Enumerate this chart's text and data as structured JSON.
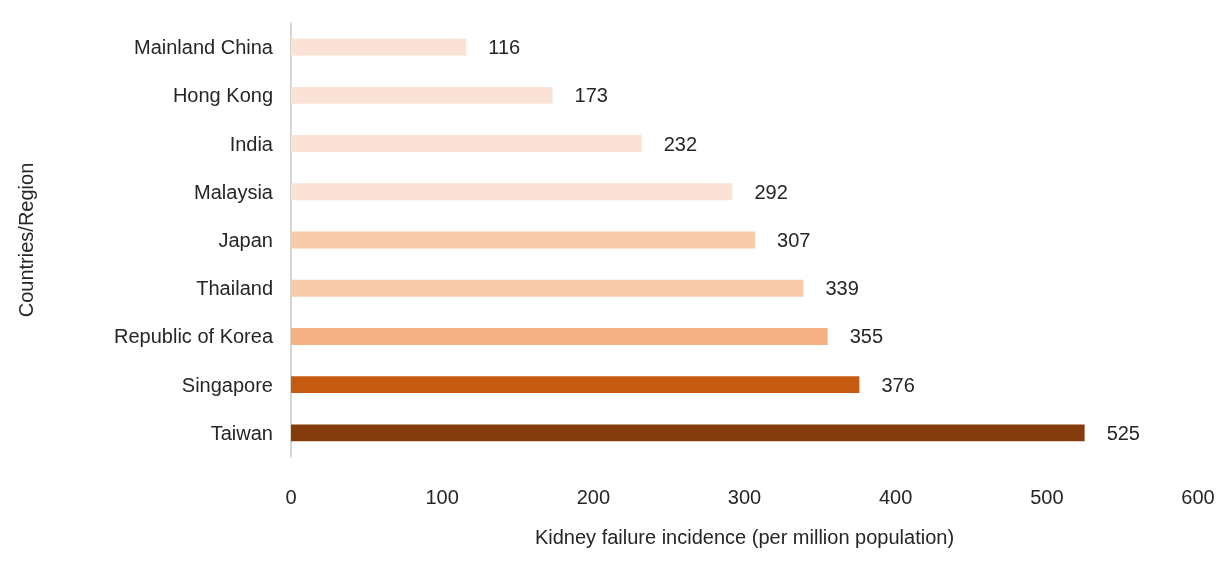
{
  "chart_data": {
    "type": "bar",
    "orientation": "horizontal",
    "xlabel": "Kidney failure incidence (per million population)",
    "ylabel": "Countries/Region",
    "categories": [
      "Mainland China",
      "Hong Kong",
      "India",
      "Malaysia",
      "Japan",
      "Thailand",
      "Republic of Korea",
      "Singapore",
      "Taiwan"
    ],
    "values": [
      116,
      173,
      232,
      292,
      307,
      339,
      355,
      376,
      525
    ],
    "colors": [
      "#fae3d6",
      "#fae3d6",
      "#fae3d6",
      "#fae3d6",
      "#f8cbab",
      "#f8cbab",
      "#f4b183",
      "#c55a11",
      "#843c0c"
    ],
    "xlim": [
      0,
      600
    ],
    "xticks": [
      0,
      100,
      200,
      300,
      400,
      500,
      600
    ],
    "data_labels": true
  }
}
